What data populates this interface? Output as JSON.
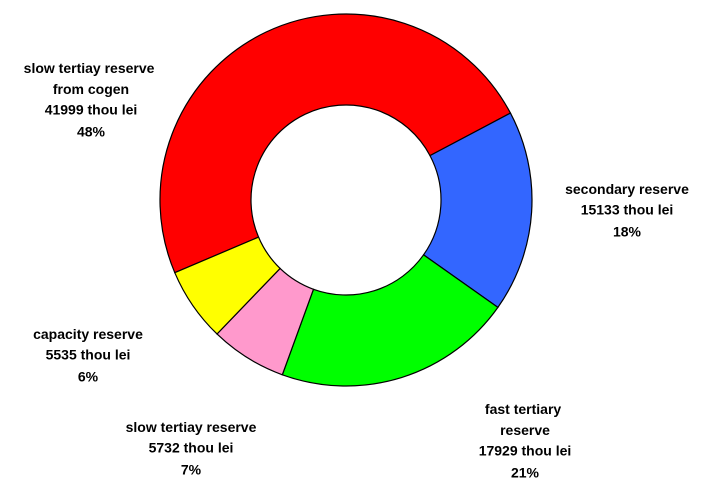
{
  "chart_data": {
    "type": "donut",
    "categories": [
      "slow tertiay reserve from cogen",
      "secondary reserve",
      "fast tertiary reserve",
      "slow tertiay reserve",
      "capacity reserve"
    ],
    "values": [
      41999,
      15133,
      17929,
      5732,
      5535
    ],
    "value_labels": [
      "41999 thou lei",
      "15133 thou lei",
      "17929 thou lei",
      "5732 thou lei",
      "5535 thou lei"
    ],
    "percentages": [
      48,
      18,
      21,
      7,
      6
    ],
    "percentage_labels": [
      "48%",
      "18%",
      "21%",
      "7%",
      "6%"
    ],
    "colors": [
      "#ff0000",
      "#3366ff",
      "#00ff00",
      "#ff99cc",
      "#ffff00"
    ]
  }
}
